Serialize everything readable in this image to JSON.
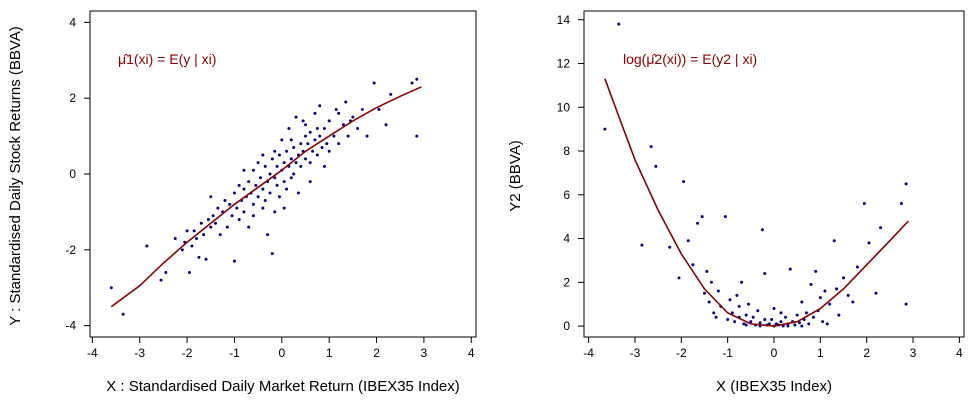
{
  "colors": {
    "points": "#00008B",
    "curve": "#8B0000",
    "axis": "#000000",
    "annotation": "#8B0000"
  },
  "chart_data": [
    {
      "type": "scatter",
      "xlabel": "X : Standardised Daily Market Return (IBEX35 Index)",
      "ylabel": "Y : Standardised Daily Stock Returns (BBVA)",
      "annotation": "μ̂1(xi) = E(y | xi)",
      "xlim": [
        -4.05,
        4.1
      ],
      "ylim": [
        -4.3,
        4.3
      ],
      "x_ticks": [
        "-4",
        "-3",
        "-2",
        "-1",
        "0",
        "1",
        "2",
        "3",
        "4"
      ],
      "y_ticks": [
        "-4",
        "-2",
        "0",
        "2",
        "4"
      ],
      "grid": false,
      "points": [
        [
          -3.6,
          -3.0
        ],
        [
          -3.35,
          -3.7
        ],
        [
          -2.85,
          -1.9
        ],
        [
          -2.55,
          -2.8
        ],
        [
          -2.45,
          -2.6
        ],
        [
          -2.25,
          -1.7
        ],
        [
          -2.1,
          -2.0
        ],
        [
          -2.05,
          -1.8
        ],
        [
          -1.95,
          -2.6
        ],
        [
          -1.85,
          -1.5
        ],
        [
          -1.8,
          -1.7
        ],
        [
          -1.75,
          -2.2
        ],
        [
          -1.7,
          -1.3
        ],
        [
          -1.65,
          -1.6
        ],
        [
          -1.6,
          -2.25
        ],
        [
          -1.55,
          -1.2
        ],
        [
          -1.5,
          -1.4
        ],
        [
          -1.5,
          -0.6
        ],
        [
          -1.45,
          -1.1
        ],
        [
          -1.4,
          -1.3
        ],
        [
          -1.35,
          -0.9
        ],
        [
          -1.3,
          -1.6
        ],
        [
          -1.25,
          -1.0
        ],
        [
          -1.2,
          -0.7
        ],
        [
          -1.15,
          -1.4
        ],
        [
          -1.1,
          -0.8
        ],
        [
          -1.05,
          -1.1
        ],
        [
          -1.0,
          -2.3
        ],
        [
          -1.0,
          -0.5
        ],
        [
          -0.95,
          -0.9
        ],
        [
          -0.9,
          -0.3
        ],
        [
          -0.9,
          -1.2
        ],
        [
          -0.85,
          -0.7
        ],
        [
          -0.8,
          -0.4
        ],
        [
          -0.8,
          -1.0
        ],
        [
          -0.75,
          -0.6
        ],
        [
          -0.7,
          -0.2
        ],
        [
          -0.7,
          -1.4
        ],
        [
          -0.65,
          -0.5
        ],
        [
          -0.6,
          -0.8
        ],
        [
          -0.6,
          0.1
        ],
        [
          -0.55,
          -0.3
        ],
        [
          -0.5,
          -0.6
        ],
        [
          -0.5,
          0.3
        ],
        [
          -0.45,
          -0.1
        ],
        [
          -0.4,
          -0.4
        ],
        [
          -0.4,
          -0.9
        ],
        [
          -0.35,
          0.2
        ],
        [
          -0.3,
          -0.2
        ],
        [
          -0.3,
          -1.6
        ],
        [
          -0.25,
          0.0
        ],
        [
          -0.25,
          -0.5
        ],
        [
          -0.2,
          0.4
        ],
        [
          -0.2,
          -2.1
        ],
        [
          -0.15,
          -0.1
        ],
        [
          -0.15,
          0.6
        ],
        [
          -0.1,
          0.2
        ],
        [
          -0.1,
          -0.3
        ],
        [
          -0.05,
          0.5
        ],
        [
          -0.05,
          -0.6
        ],
        [
          0.0,
          0.1
        ],
        [
          0.0,
          0.9
        ],
        [
          0.05,
          -0.2
        ],
        [
          0.05,
          0.3
        ],
        [
          0.1,
          0.6
        ],
        [
          0.1,
          -0.4
        ],
        [
          0.15,
          0.2
        ],
        [
          0.15,
          1.2
        ],
        [
          0.2,
          0.4
        ],
        [
          0.2,
          -0.1
        ],
        [
          0.25,
          0.7
        ],
        [
          0.25,
          0.0
        ],
        [
          0.3,
          0.3
        ],
        [
          0.3,
          1.5
        ],
        [
          0.35,
          0.5
        ],
        [
          0.35,
          -0.5
        ],
        [
          0.4,
          0.8
        ],
        [
          0.4,
          0.2
        ],
        [
          0.45,
          0.6
        ],
        [
          0.45,
          1.4
        ],
        [
          0.5,
          0.4
        ],
        [
          0.5,
          1.0
        ],
        [
          0.55,
          0.8
        ],
        [
          0.6,
          0.3
        ],
        [
          0.6,
          1.1
        ],
        [
          0.65,
          0.6
        ],
        [
          0.7,
          0.9
        ],
        [
          0.7,
          1.6
        ],
        [
          0.75,
          0.5
        ],
        [
          0.8,
          1.0
        ],
        [
          0.8,
          1.8
        ],
        [
          0.85,
          0.7
        ],
        [
          0.9,
          1.2
        ],
        [
          0.95,
          0.8
        ],
        [
          1.0,
          1.4
        ],
        [
          1.0,
          0.6
        ],
        [
          1.1,
          1.0
        ],
        [
          1.15,
          1.7
        ],
        [
          1.2,
          0.8
        ],
        [
          1.3,
          1.3
        ],
        [
          1.35,
          1.9
        ],
        [
          1.4,
          1.0
        ],
        [
          1.5,
          1.5
        ],
        [
          1.6,
          1.2
        ],
        [
          1.7,
          1.7
        ],
        [
          1.8,
          1.0
        ],
        [
          1.95,
          2.4
        ],
        [
          2.05,
          1.7
        ],
        [
          2.2,
          1.3
        ],
        [
          2.3,
          2.1
        ],
        [
          2.75,
          2.4
        ],
        [
          2.85,
          2.5
        ],
        [
          2.85,
          1.0
        ],
        [
          -0.4,
          0.5
        ],
        [
          0.2,
          0.9
        ],
        [
          -0.8,
          0.1
        ],
        [
          0.6,
          -0.2
        ],
        [
          -1.9,
          -1.9
        ],
        [
          0.9,
          0.2
        ],
        [
          -0.15,
          -1.0
        ],
        [
          0.5,
          1.3
        ],
        [
          -0.6,
          -1.1
        ],
        [
          1.2,
          1.6
        ],
        [
          -2.0,
          -1.5
        ],
        [
          0.75,
          1.2
        ],
        [
          -0.35,
          -0.7
        ],
        [
          1.45,
          1.4
        ],
        [
          0.05,
          -0.9
        ]
      ],
      "curve": [
        [
          -3.6,
          -3.5
        ],
        [
          -3.0,
          -2.95
        ],
        [
          -2.5,
          -2.35
        ],
        [
          -2.0,
          -1.8
        ],
        [
          -1.5,
          -1.3
        ],
        [
          -1.0,
          -0.8
        ],
        [
          -0.5,
          -0.35
        ],
        [
          0.0,
          0.1
        ],
        [
          0.5,
          0.6
        ],
        [
          1.0,
          1.0
        ],
        [
          1.5,
          1.4
        ],
        [
          2.0,
          1.75
        ],
        [
          2.5,
          2.05
        ],
        [
          2.95,
          2.3
        ]
      ]
    },
    {
      "type": "scatter",
      "xlabel": "X (IBEX35 Index)",
      "ylabel": "Y2 (BBVA)",
      "annotation": "log(μ̂2(xi)) = E(y2 | xi)",
      "xlim": [
        -4.1,
        4.1
      ],
      "ylim": [
        -0.5,
        14.4
      ],
      "x_ticks": [
        "-4",
        "-3",
        "-2",
        "-1",
        "0",
        "1",
        "2",
        "3",
        "4"
      ],
      "y_ticks": [
        "0",
        "2",
        "4",
        "6",
        "8",
        "10",
        "12",
        "14"
      ],
      "grid": false,
      "points": [
        [
          -3.65,
          9.0
        ],
        [
          -3.35,
          13.8
        ],
        [
          -2.85,
          3.7
        ],
        [
          -2.65,
          8.2
        ],
        [
          -2.55,
          7.3
        ],
        [
          -2.25,
          3.6
        ],
        [
          -2.05,
          2.2
        ],
        [
          -1.95,
          6.6
        ],
        [
          -1.85,
          3.9
        ],
        [
          -1.75,
          2.8
        ],
        [
          -1.65,
          4.7
        ],
        [
          -1.55,
          5.0
        ],
        [
          -1.5,
          1.5
        ],
        [
          -1.45,
          2.5
        ],
        [
          -1.4,
          1.1
        ],
        [
          -1.35,
          2.0
        ],
        [
          -1.3,
          0.6
        ],
        [
          -1.2,
          1.6
        ],
        [
          -1.15,
          0.9
        ],
        [
          -1.05,
          5.0
        ],
        [
          -1.0,
          0.3
        ],
        [
          -0.95,
          1.2
        ],
        [
          -0.9,
          0.6
        ],
        [
          -0.85,
          0.2
        ],
        [
          -0.8,
          1.4
        ],
        [
          -0.75,
          0.4
        ],
        [
          -0.7,
          2.0
        ],
        [
          -0.65,
          0.1
        ],
        [
          -0.6,
          0.5
        ],
        [
          -0.55,
          1.0
        ],
        [
          -0.5,
          0.2
        ],
        [
          -0.45,
          0.4
        ],
        [
          -0.4,
          0.05
        ],
        [
          -0.35,
          0.7
        ],
        [
          -0.3,
          0.15
        ],
        [
          -0.25,
          4.4
        ],
        [
          -0.2,
          2.4
        ],
        [
          -0.2,
          0.3
        ],
        [
          -0.15,
          0.05
        ],
        [
          -0.1,
          0.1
        ],
        [
          -0.05,
          0.3
        ],
        [
          0.0,
          0.0
        ],
        [
          0.0,
          0.8
        ],
        [
          0.05,
          0.1
        ],
        [
          0.1,
          0.05
        ],
        [
          0.15,
          0.2
        ],
        [
          0.2,
          0.0
        ],
        [
          0.25,
          0.4
        ],
        [
          0.3,
          0.1
        ],
        [
          0.35,
          2.6
        ],
        [
          0.4,
          0.2
        ],
        [
          0.45,
          0.05
        ],
        [
          0.5,
          0.5
        ],
        [
          0.55,
          0.15
        ],
        [
          0.6,
          1.1
        ],
        [
          0.65,
          0.3
        ],
        [
          0.7,
          0.6
        ],
        [
          0.75,
          0.1
        ],
        [
          0.8,
          1.9
        ],
        [
          0.85,
          0.4
        ],
        [
          0.9,
          2.5
        ],
        [
          0.95,
          0.7
        ],
        [
          1.0,
          1.3
        ],
        [
          1.05,
          0.2
        ],
        [
          1.1,
          1.6
        ],
        [
          1.2,
          1.0
        ],
        [
          1.3,
          3.9
        ],
        [
          1.35,
          1.7
        ],
        [
          1.4,
          0.5
        ],
        [
          1.5,
          2.2
        ],
        [
          1.6,
          1.4
        ],
        [
          1.7,
          1.1
        ],
        [
          1.8,
          2.7
        ],
        [
          1.95,
          5.6
        ],
        [
          2.05,
          3.8
        ],
        [
          2.2,
          1.5
        ],
        [
          2.3,
          4.5
        ],
        [
          2.75,
          5.6
        ],
        [
          2.85,
          6.5
        ],
        [
          2.85,
          1.0
        ],
        [
          -0.6,
          0.05
        ],
        [
          0.3,
          0.0
        ],
        [
          -0.3,
          0.0
        ],
        [
          0.15,
          0.6
        ],
        [
          -0.75,
          0.9
        ],
        [
          0.6,
          0.0
        ],
        [
          -1.25,
          0.4
        ],
        [
          1.15,
          0.1
        ]
      ],
      "curve": [
        [
          -3.65,
          11.3
        ],
        [
          -3.3,
          9.3
        ],
        [
          -3.0,
          7.6
        ],
        [
          -2.5,
          5.3
        ],
        [
          -2.0,
          3.3
        ],
        [
          -1.5,
          1.7
        ],
        [
          -1.0,
          0.6
        ],
        [
          -0.5,
          0.1
        ],
        [
          0.0,
          0.0
        ],
        [
          0.5,
          0.2
        ],
        [
          1.0,
          0.8
        ],
        [
          1.5,
          1.7
        ],
        [
          2.0,
          2.8
        ],
        [
          2.5,
          3.9
        ],
        [
          2.9,
          4.8
        ]
      ]
    }
  ]
}
